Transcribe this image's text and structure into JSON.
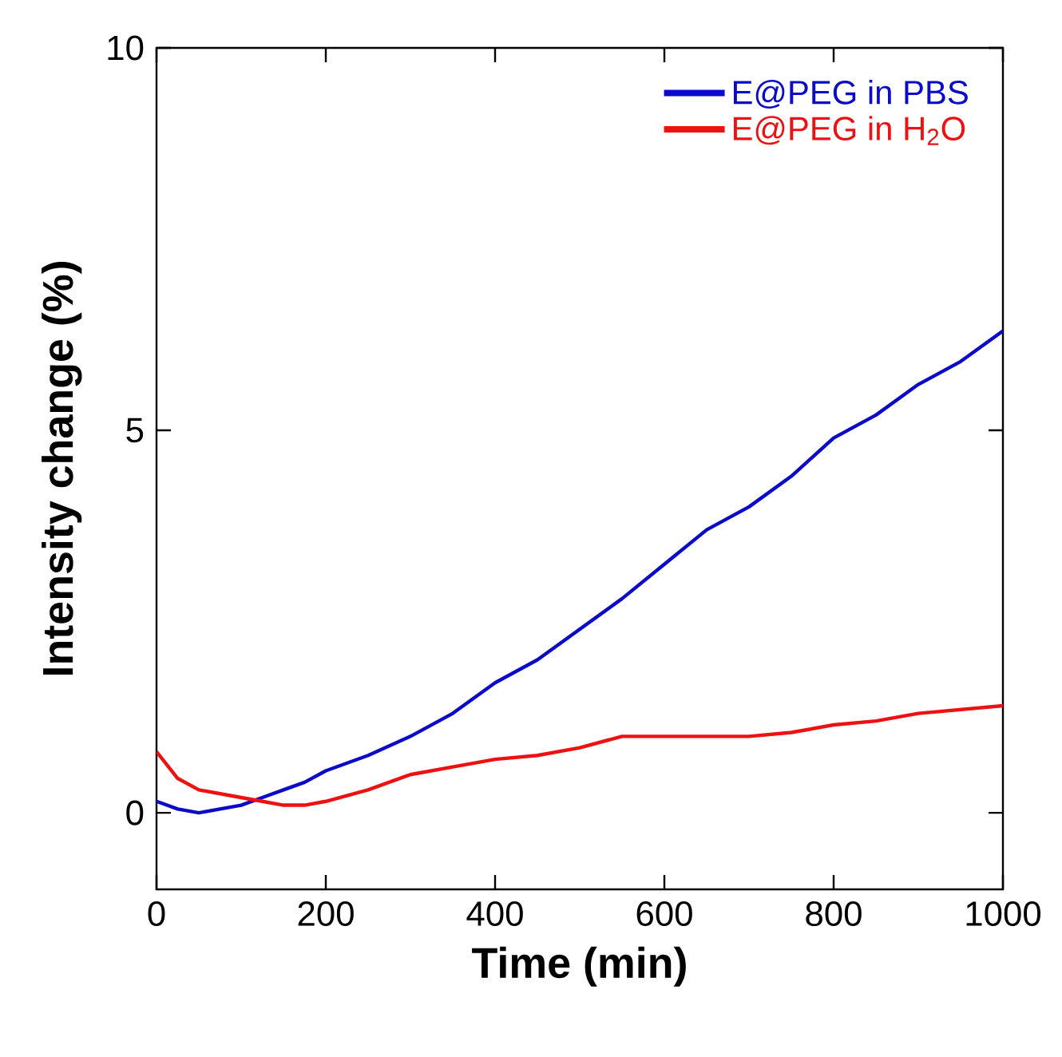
{
  "chart_data": {
    "type": "line",
    "xlabel": "Time (min)",
    "ylabel": "Intensity change (%)",
    "xlim": [
      0,
      1000
    ],
    "ylim": [
      -1,
      10
    ],
    "xticks": [
      0,
      200,
      400,
      600,
      800,
      1000
    ],
    "yticks": [
      0,
      5,
      10
    ],
    "legend": "top right",
    "grid": false,
    "series": [
      {
        "name": "E@PEG in PBS",
        "color": "#0a0ac8",
        "x": [
          0,
          25,
          50,
          75,
          100,
          125,
          150,
          175,
          200,
          250,
          300,
          350,
          400,
          450,
          500,
          550,
          600,
          650,
          700,
          750,
          800,
          850,
          900,
          950,
          1000
        ],
        "values": [
          0.15,
          0.05,
          0.0,
          0.05,
          0.1,
          0.2,
          0.3,
          0.4,
          0.55,
          0.75,
          1.0,
          1.3,
          1.7,
          2.0,
          2.4,
          2.8,
          3.25,
          3.7,
          4.0,
          4.4,
          4.9,
          5.2,
          5.6,
          5.9,
          6.3
        ]
      },
      {
        "name": "E@PEG in H$_{2}$O",
        "color": "#ee1111",
        "x": [
          0,
          25,
          50,
          75,
          100,
          125,
          150,
          175,
          200,
          250,
          300,
          350,
          400,
          450,
          500,
          550,
          600,
          650,
          700,
          750,
          800,
          850,
          900,
          950,
          1000
        ],
        "values": [
          0.8,
          0.45,
          0.3,
          0.25,
          0.2,
          0.15,
          0.1,
          0.1,
          0.15,
          0.3,
          0.5,
          0.6,
          0.7,
          0.75,
          0.85,
          1.0,
          1.0,
          1.0,
          1.0,
          1.05,
          1.15,
          1.2,
          1.3,
          1.35,
          1.4
        ]
      }
    ]
  }
}
